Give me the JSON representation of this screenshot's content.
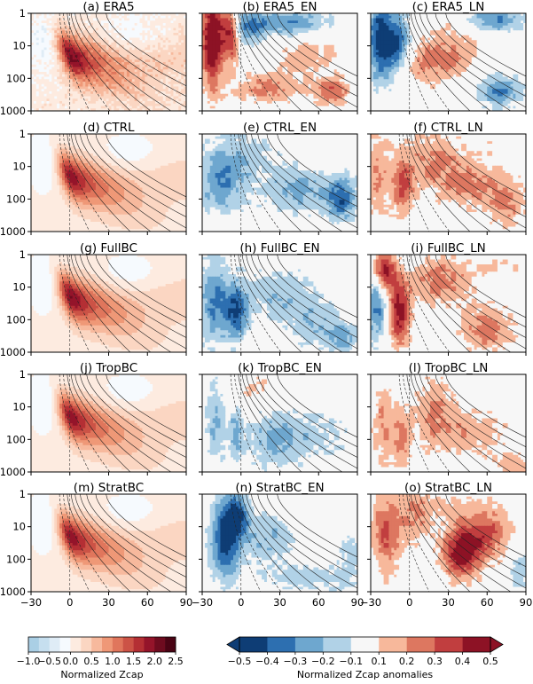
{
  "chart_data": {
    "type": "heatmap",
    "rows": [
      {
        "panels": [
          {
            "title": "(a) ERA5",
            "field": "clim",
            "peak_lag": 2,
            "peak_lev": 20,
            "amp": 1.8,
            "noise": 0.05
          },
          {
            "title": "(b) ERA5_EN",
            "field": "anom",
            "pattern": "era5_en"
          },
          {
            "title": "(c) ERA5_LN",
            "field": "anom",
            "pattern": "era5_ln"
          }
        ]
      },
      {
        "panels": [
          {
            "title": "(d) CTRL",
            "field": "clim",
            "peak_lag": 2,
            "peak_lev": 25,
            "amp": 1.6,
            "noise": 0.0
          },
          {
            "title": "(e) CTRL_EN",
            "field": "anom",
            "pattern": "ctrl_en"
          },
          {
            "title": "(f) CTRL_LN",
            "field": "anom",
            "pattern": "ctrl_ln"
          }
        ]
      },
      {
        "panels": [
          {
            "title": "(g) FullBC",
            "field": "clim",
            "peak_lag": 2,
            "peak_lev": 25,
            "amp": 1.7,
            "noise": 0.0
          },
          {
            "title": "(h) FullBC_EN",
            "field": "anom",
            "pattern": "fullbc_en"
          },
          {
            "title": "(i) FullBC_LN",
            "field": "anom",
            "pattern": "fullbc_ln"
          }
        ]
      },
      {
        "panels": [
          {
            "title": "(j) TropBC",
            "field": "clim",
            "peak_lag": 2,
            "peak_lev": 20,
            "amp": 1.6,
            "noise": 0.0
          },
          {
            "title": "(k) TropBC_EN",
            "field": "anom",
            "pattern": "tropbc_en"
          },
          {
            "title": "(l) TropBC_LN",
            "field": "anom",
            "pattern": "tropbc_ln"
          }
        ]
      },
      {
        "panels": [
          {
            "title": "(m) StratBC",
            "field": "clim",
            "peak_lag": 2,
            "peak_lev": 20,
            "amp": 1.6,
            "noise": 0.0
          },
          {
            "title": "(n) StratBC_EN",
            "field": "anom",
            "pattern": "stratbc_en"
          },
          {
            "title": "(o) StratBC_LN",
            "field": "anom",
            "pattern": "stratbc_ln"
          }
        ]
      }
    ],
    "x_ticks": [
      "−30",
      "0",
      "30",
      "60",
      "90"
    ],
    "x_range": [
      -30,
      90
    ],
    "y_ticks": [
      "1",
      "10",
      "100",
      "1000"
    ],
    "y_range": [
      1,
      1000
    ],
    "y_scale": "log",
    "colorbars": [
      {
        "label": "Normalized Zcap",
        "ticks": [
          "−1.0",
          "−0.5",
          "0.0",
          "0.5",
          "1.0",
          "1.5",
          "2.0",
          "2.5"
        ],
        "range": [
          -1.0,
          2.5
        ],
        "colors": [
          "#aacfe5",
          "#c6dfef",
          "#dfecf6",
          "#f6fafe",
          "#fdebe0",
          "#fbd6c2",
          "#f7b99d",
          "#ef9877",
          "#e0765c",
          "#cc5346",
          "#b42f34",
          "#94142a",
          "#6e0b1f",
          "#4a0314"
        ]
      },
      {
        "label": "Normalized Zcap anomalies",
        "ticks": [
          "−0.5",
          "−0.4",
          "−0.3",
          "−0.2",
          "−0.1",
          "0.1",
          "0.2",
          "0.3",
          "0.4",
          "0.5"
        ],
        "range": [
          -0.5,
          0.5
        ],
        "colors": [
          "#0e3d75",
          "#2d6fb0",
          "#6ea7cf",
          "#b1d2e7",
          "#f7f7f7",
          "#f7b89b",
          "#dd7760",
          "#c13e3f",
          "#8d1225"
        ],
        "extend": "both"
      }
    ]
  }
}
